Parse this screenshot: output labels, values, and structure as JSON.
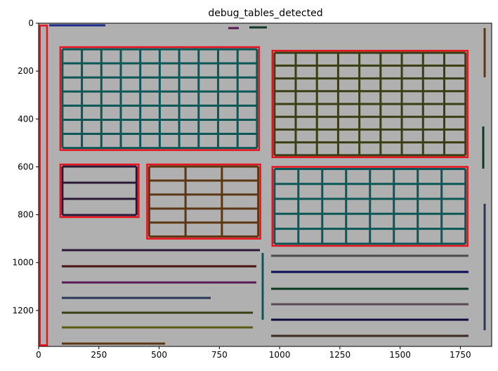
{
  "chart_data": {
    "type": "image",
    "title": "debug_tables_detected",
    "xlim": [
      0,
      1880
    ],
    "ylim": [
      1350,
      0
    ],
    "xticks": [
      0,
      250,
      500,
      750,
      1000,
      1250,
      1500,
      1750
    ],
    "yticks": [
      0,
      200,
      400,
      600,
      800,
      1000,
      1200
    ],
    "box_color": "#e8141c",
    "boxes": [
      {
        "x0": 90,
        "y0": 100,
        "x1": 915,
        "y1": 530
      },
      {
        "x0": 970,
        "y0": 115,
        "x1": 1780,
        "y1": 560
      },
      {
        "x0": 90,
        "y0": 590,
        "x1": 415,
        "y1": 810
      },
      {
        "x0": 450,
        "y0": 590,
        "x1": 920,
        "y1": 900
      },
      {
        "x0": 970,
        "y0": 600,
        "x1": 1780,
        "y1": 930
      },
      {
        "x0": 5,
        "y0": 10,
        "x1": 35,
        "y1": 1345
      }
    ]
  }
}
